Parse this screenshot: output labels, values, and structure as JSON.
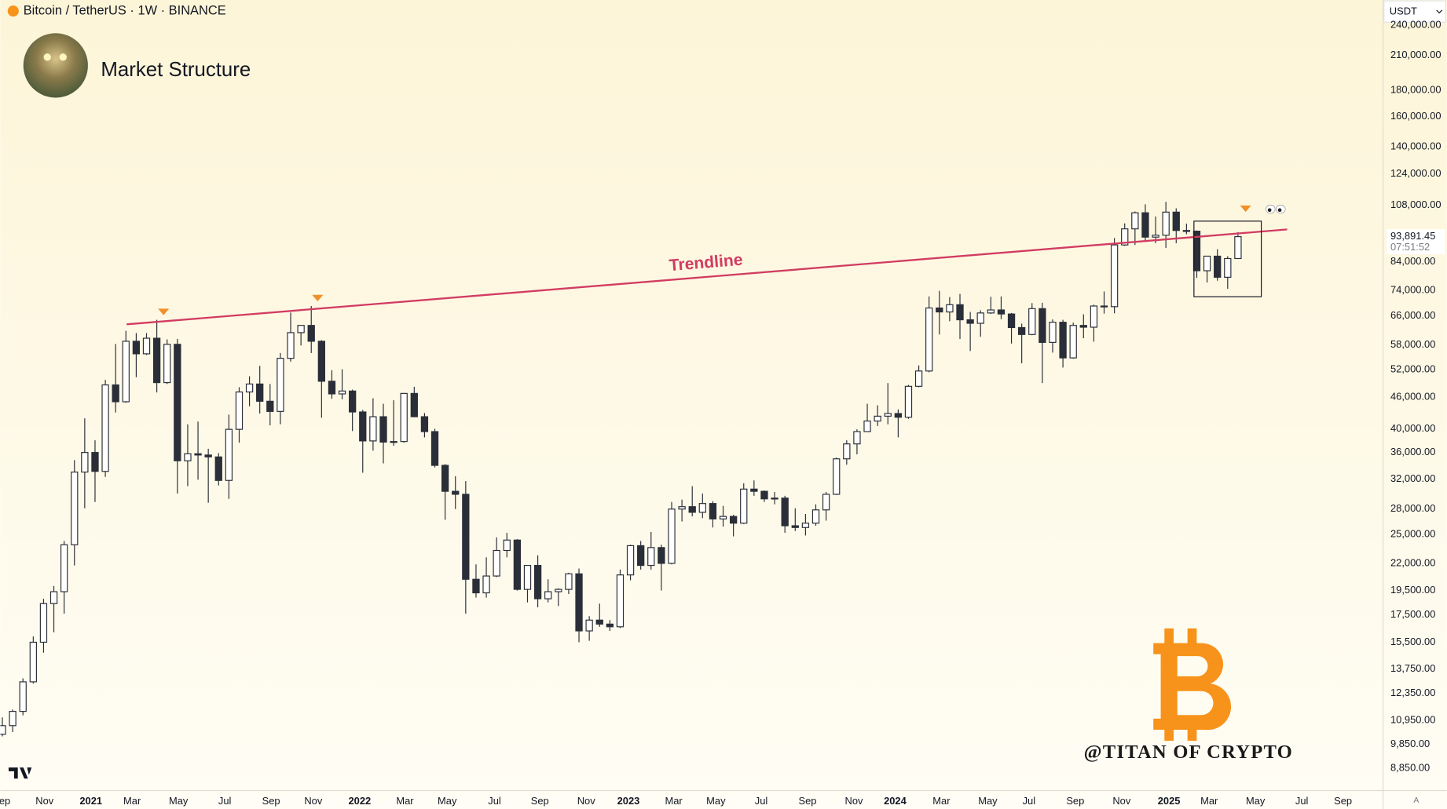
{
  "chart_data": {
    "type": "candlestick",
    "header": "Bitcoin / TetherUS · 1W · BINANCE",
    "title": "Market Structure",
    "annotation": "Trendline",
    "watermark": "@TITAN OF CRYPTO",
    "currency": "USDT",
    "last_price": {
      "value": 93891.45,
      "label": "93,891.45"
    },
    "countdown": "07:51:52",
    "log_scale": true,
    "grid": false,
    "up_color": "#ffffff",
    "down_color": "#2a2e39",
    "wick_color": "#2a2e39",
    "open": [
      10300,
      10700,
      11400,
      13000,
      15500,
      18400,
      19400,
      23900,
      33000,
      36000,
      33100,
      48600,
      45100,
      59000,
      55800,
      59800,
      49100,
      58200,
      34700,
      35800,
      35600,
      35300,
      31800,
      39900,
      47100,
      48800,
      45200,
      43200,
      54700,
      61300,
      63300,
      59000,
      49400,
      46700,
      47300,
      43100,
      37900,
      42200,
      37700,
      37800,
      46800,
      42200,
      39500,
      34000,
      30300,
      29900,
      20500,
      19300,
      20800,
      23300,
      24400,
      19600,
      21800,
      18800,
      19400,
      19600,
      21000,
      16300,
      17100,
      16800,
      16600,
      20900,
      23800,
      21800,
      23600,
      22000,
      28000,
      28300,
      27600,
      28700,
      26800,
      27100,
      26300,
      30600,
      30300,
      29300,
      29400,
      26000,
      25800,
      26300,
      27900,
      29900,
      35000,
      37400,
      39500,
      41400,
      42300,
      42800,
      42100,
      48300,
      51700,
      68400,
      67200,
      69400,
      64900,
      63900,
      66900,
      67800,
      66600,
      62700,
      60800,
      68200,
      58700,
      64200,
      54800,
      63300,
      62800,
      69000,
      68800,
      90500,
      97200,
      104400,
      93700,
      94500,
      104700,
      96500,
      96200,
      80700,
      86100,
      78400,
      85200
    ],
    "high": [
      11100,
      11500,
      13200,
      15900,
      18800,
      19900,
      24300,
      34800,
      41900,
      38000,
      49700,
      58300,
      61800,
      61200,
      61200,
      64900,
      59500,
      59600,
      40800,
      41300,
      36600,
      35900,
      42600,
      48100,
      50500,
      52900,
      48800,
      56000,
      67000,
      63300,
      69000,
      59300,
      51900,
      52100,
      47600,
      43500,
      45800,
      44700,
      45400,
      46900,
      48200,
      42900,
      40000,
      34200,
      32400,
      31700,
      21900,
      22600,
      24700,
      25200,
      24500,
      21800,
      22800,
      20500,
      19700,
      21100,
      21500,
      17400,
      18400,
      17100,
      21400,
      23900,
      24300,
      25300,
      23900,
      28900,
      29200,
      31000,
      30000,
      29000,
      28400,
      27300,
      31400,
      31800,
      30400,
      30200,
      29700,
      28100,
      27400,
      28600,
      30200,
      35200,
      38000,
      39900,
      44700,
      44400,
      49000,
      43600,
      48600,
      53000,
      72000,
      73800,
      71800,
      72800,
      67200,
      67700,
      71900,
      72000,
      66900,
      63800,
      69900,
      70000,
      65000,
      64900,
      64100,
      66500,
      69400,
      73600,
      93300,
      99600,
      105000,
      108400,
      102700,
      109600,
      106500,
      99500,
      96500,
      86200,
      88800,
      86100,
      95800
    ],
    "low": [
      10200,
      10400,
      11200,
      12900,
      14800,
      16200,
      17600,
      21800,
      28100,
      28900,
      32300,
      43000,
      44900,
      50300,
      55500,
      47000,
      48800,
      30000,
      31000,
      31900,
      28800,
      31100,
      29300,
      37600,
      44200,
      42800,
      40600,
      40800,
      53900,
      57900,
      56000,
      42000,
      45700,
      45600,
      39600,
      32900,
      36300,
      34300,
      37100,
      37600,
      42100,
      38500,
      33700,
      26700,
      28000,
      17600,
      18900,
      18900,
      20700,
      22600,
      19500,
      18500,
      18100,
      18500,
      18200,
      19200,
      15500,
      15600,
      16600,
      16300,
      16500,
      20400,
      21400,
      21400,
      19500,
      21900,
      26500,
      27100,
      26900,
      25800,
      25900,
      24800,
      26200,
      29700,
      28900,
      28600,
      25200,
      25400,
      24900,
      26000,
      26600,
      29800,
      34100,
      35700,
      39500,
      40500,
      40800,
      38500,
      41800,
      48100,
      51400,
      60800,
      64500,
      59600,
      56500,
      60200,
      66600,
      65100,
      58400,
      53500,
      60600,
      49000,
      56100,
      52500,
      54600,
      59800,
      58900,
      66700,
      66800,
      90100,
      90500,
      92200,
      91200,
      89300,
      91200,
      94900,
      78200,
      76600,
      77200,
      74500,
      85100
    ],
    "close": [
      10700,
      11400,
      13000,
      15500,
      18400,
      19400,
      23900,
      33000,
      36000,
      33100,
      48600,
      45100,
      59000,
      55800,
      59800,
      49100,
      58200,
      34700,
      35800,
      35600,
      35300,
      31800,
      39900,
      47100,
      48800,
      45200,
      43200,
      54700,
      61300,
      63300,
      59000,
      49400,
      46700,
      47300,
      43100,
      37900,
      42200,
      37700,
      37800,
      46800,
      42200,
      39500,
      34000,
      30300,
      29900,
      20500,
      19300,
      20800,
      23300,
      24400,
      19600,
      21800,
      18800,
      19400,
      19600,
      21000,
      16300,
      17100,
      16800,
      16600,
      20900,
      23800,
      21800,
      23600,
      22000,
      28000,
      28300,
      27600,
      28700,
      26800,
      27100,
      26300,
      30600,
      30300,
      29300,
      29400,
      26000,
      25800,
      26300,
      27900,
      29900,
      35000,
      37400,
      39500,
      41400,
      42300,
      42800,
      42100,
      48300,
      51700,
      68400,
      67200,
      69400,
      64900,
      63900,
      66900,
      67800,
      66600,
      62700,
      60800,
      68200,
      58700,
      64200,
      54800,
      63300,
      62800,
      69000,
      68800,
      90500,
      97200,
      104400,
      93700,
      94500,
      104700,
      96500,
      96200,
      80700,
      86100,
      78400,
      85200,
      93891.45
    ],
    "xlim": [
      -0.2,
      134
    ],
    "xticks": [
      {
        "value": -0.1,
        "label": "Sep"
      },
      {
        "value": 4.1,
        "label": "Nov"
      },
      {
        "value": 8.6,
        "label": "2021"
      },
      {
        "value": 12.6,
        "label": "Mar"
      },
      {
        "value": 17.1,
        "label": "May"
      },
      {
        "value": 21.6,
        "label": "Jul"
      },
      {
        "value": 26.1,
        "label": "Sep"
      },
      {
        "value": 30.2,
        "label": "Nov"
      },
      {
        "value": 34.7,
        "label": "2022"
      },
      {
        "value": 39.1,
        "label": "Mar"
      },
      {
        "value": 43.2,
        "label": "May"
      },
      {
        "value": 47.8,
        "label": "Jul"
      },
      {
        "value": 52.2,
        "label": "Sep"
      },
      {
        "value": 56.7,
        "label": "Nov"
      },
      {
        "value": 60.8,
        "label": "2023"
      },
      {
        "value": 65.2,
        "label": "Mar"
      },
      {
        "value": 69.3,
        "label": "May"
      },
      {
        "value": 73.7,
        "label": "Jul"
      },
      {
        "value": 78.2,
        "label": "Sep"
      },
      {
        "value": 82.7,
        "label": "Nov"
      },
      {
        "value": 86.7,
        "label": "2024"
      },
      {
        "value": 91.2,
        "label": "Mar"
      },
      {
        "value": 95.7,
        "label": "May"
      },
      {
        "value": 99.7,
        "label": "Jul"
      },
      {
        "value": 104.2,
        "label": "Sep"
      },
      {
        "value": 108.7,
        "label": "Nov"
      },
      {
        "value": 113.3,
        "label": "2025"
      },
      {
        "value": 117.2,
        "label": "Mar"
      },
      {
        "value": 121.7,
        "label": "May"
      },
      {
        "value": 126.2,
        "label": "Jul"
      },
      {
        "value": 130.2,
        "label": "Sep"
      }
    ],
    "ylim": [
      8020,
      268600
    ],
    "yticks": [
      {
        "value": 240000,
        "label": "240,000.00"
      },
      {
        "value": 210000,
        "label": "210,000.00"
      },
      {
        "value": 180000,
        "label": "180,000.00"
      },
      {
        "value": 160000,
        "label": "160,000.00"
      },
      {
        "value": 140000,
        "label": "140,000.00"
      },
      {
        "value": 124000,
        "label": "124,000.00"
      },
      {
        "value": 108000,
        "label": "108,000.00"
      },
      {
        "value": 84000,
        "label": "84,000.00"
      },
      {
        "value": 74000,
        "label": "74,000.00"
      },
      {
        "value": 66000,
        "label": "66,000.00"
      },
      {
        "value": 58000,
        "label": "58,000.00"
      },
      {
        "value": 52000,
        "label": "52,000.00"
      },
      {
        "value": 46000,
        "label": "46,000.00"
      },
      {
        "value": 40000,
        "label": "40,000.00"
      },
      {
        "value": 36000,
        "label": "36,000.00"
      },
      {
        "value": 32000,
        "label": "32,000.00"
      },
      {
        "value": 28000,
        "label": "28,000.00"
      },
      {
        "value": 25000,
        "label": "25,000.00"
      },
      {
        "value": 22000,
        "label": "22,000.00"
      },
      {
        "value": 19500,
        "label": "19,500.00"
      },
      {
        "value": 17500,
        "label": "17,500.00"
      },
      {
        "value": 15500,
        "label": "15,500.00"
      },
      {
        "value": 13750,
        "label": "13,750.00"
      },
      {
        "value": 12350,
        "label": "12,350.00"
      },
      {
        "value": 10950,
        "label": "10,950.00"
      },
      {
        "value": 9850,
        "label": "9,850.00"
      },
      {
        "value": 8850,
        "label": "8,850.00"
      }
    ]
  }
}
